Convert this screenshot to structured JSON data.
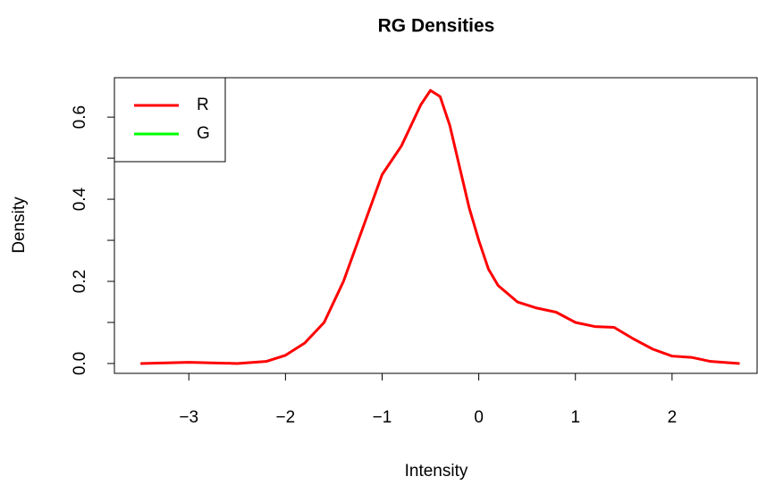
{
  "chart_data": {
    "type": "line",
    "title": "RG Densities",
    "x_label": "Intensity",
    "y_label": "Density",
    "x": [
      -3.5,
      -3.0,
      -2.5,
      -2.2,
      -2.0,
      -1.8,
      -1.6,
      -1.4,
      -1.2,
      -1.0,
      -0.8,
      -0.6,
      -0.5,
      -0.4,
      -0.3,
      -0.2,
      -0.1,
      0.0,
      0.1,
      0.2,
      0.4,
      0.6,
      0.8,
      1.0,
      1.2,
      1.4,
      1.6,
      1.8,
      2.0,
      2.2,
      2.4,
      2.7
    ],
    "series": [
      {
        "name": "R",
        "color": "#ff0000",
        "values": [
          0.0,
          0.003,
          0.0,
          0.005,
          0.02,
          0.05,
          0.1,
          0.2,
          0.33,
          0.46,
          0.53,
          0.63,
          0.665,
          0.65,
          0.58,
          0.48,
          0.38,
          0.3,
          0.23,
          0.19,
          0.15,
          0.135,
          0.125,
          0.1,
          0.09,
          0.088,
          0.06,
          0.035,
          0.018,
          0.015,
          0.005,
          0.0
        ]
      },
      {
        "name": "G",
        "color": "#00ff00",
        "values": [
          null,
          null,
          null,
          null,
          null,
          null,
          null,
          null,
          null,
          null,
          null,
          null,
          null,
          null,
          null,
          null,
          null,
          null,
          null,
          null,
          null,
          null,
          null,
          null,
          null,
          null,
          null,
          null,
          null,
          null,
          null,
          null
        ]
      }
    ],
    "xlim": [
      -3.77,
      2.88
    ],
    "ylim": [
      -0.024,
      0.696
    ],
    "xticks": [
      {
        "value": -3,
        "label": "−3"
      },
      {
        "value": -2,
        "label": "−2"
      },
      {
        "value": -1,
        "label": "−1"
      },
      0,
      1,
      2
    ],
    "yticks": [
      {
        "value": 0,
        "label": "0.0"
      },
      {
        "value": 0.1
      },
      {
        "value": 0.2,
        "label": "0.2"
      },
      {
        "value": 0.3
      },
      {
        "value": 0.4,
        "label": "0.4"
      },
      {
        "value": 0.5
      },
      {
        "value": 0.6,
        "label": "0.6"
      }
    ],
    "legend": "top-left"
  }
}
